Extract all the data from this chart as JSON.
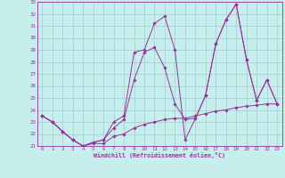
{
  "xlabel": "Windchill (Refroidissement éolien,°C)",
  "xlim": [
    -0.5,
    23.5
  ],
  "ylim": [
    21,
    33
  ],
  "xticks": [
    0,
    1,
    2,
    3,
    4,
    5,
    6,
    7,
    8,
    9,
    10,
    11,
    12,
    13,
    14,
    15,
    16,
    17,
    18,
    19,
    20,
    21,
    22,
    23
  ],
  "yticks": [
    21,
    22,
    23,
    24,
    25,
    26,
    27,
    28,
    29,
    30,
    31,
    32,
    33
  ],
  "background_color": "#c5eeed",
  "line_color": "#993399",
  "grid_color": "#9ecece",
  "line1_x": [
    0,
    1,
    2,
    3,
    4,
    5,
    6,
    7,
    8,
    9,
    10,
    11,
    12,
    13,
    14,
    15,
    16,
    17,
    18,
    19,
    20,
    21,
    22,
    23
  ],
  "line1_y": [
    23.5,
    23.0,
    22.2,
    21.5,
    21.0,
    21.2,
    21.2,
    21.8,
    22.0,
    22.5,
    22.8,
    23.0,
    23.2,
    23.3,
    23.3,
    23.5,
    23.7,
    23.9,
    24.0,
    24.2,
    24.3,
    24.4,
    24.5,
    24.5
  ],
  "line2_x": [
    0,
    1,
    2,
    3,
    4,
    5,
    6,
    7,
    8,
    9,
    10,
    11,
    12,
    13,
    14,
    15,
    16,
    17,
    18,
    19,
    20,
    21,
    22,
    23
  ],
  "line2_y": [
    23.5,
    23.0,
    22.2,
    21.5,
    21.0,
    21.3,
    21.5,
    22.5,
    23.2,
    26.5,
    28.8,
    29.2,
    27.5,
    24.5,
    23.2,
    23.3,
    25.2,
    29.5,
    31.5,
    32.8,
    28.2,
    24.8,
    26.5,
    24.5
  ],
  "line3_x": [
    0,
    1,
    2,
    3,
    4,
    5,
    6,
    7,
    8,
    9,
    10,
    11,
    12,
    13,
    14,
    15,
    16,
    17,
    18,
    19,
    20,
    21,
    22,
    23
  ],
  "line3_y": [
    23.5,
    23.0,
    22.2,
    21.5,
    21.0,
    21.3,
    21.5,
    23.0,
    23.5,
    28.8,
    29.0,
    31.2,
    31.8,
    29.0,
    21.5,
    23.3,
    25.2,
    29.5,
    31.5,
    32.8,
    28.2,
    24.8,
    26.5,
    24.5
  ],
  "figsize": [
    3.2,
    2.0
  ],
  "dpi": 100
}
